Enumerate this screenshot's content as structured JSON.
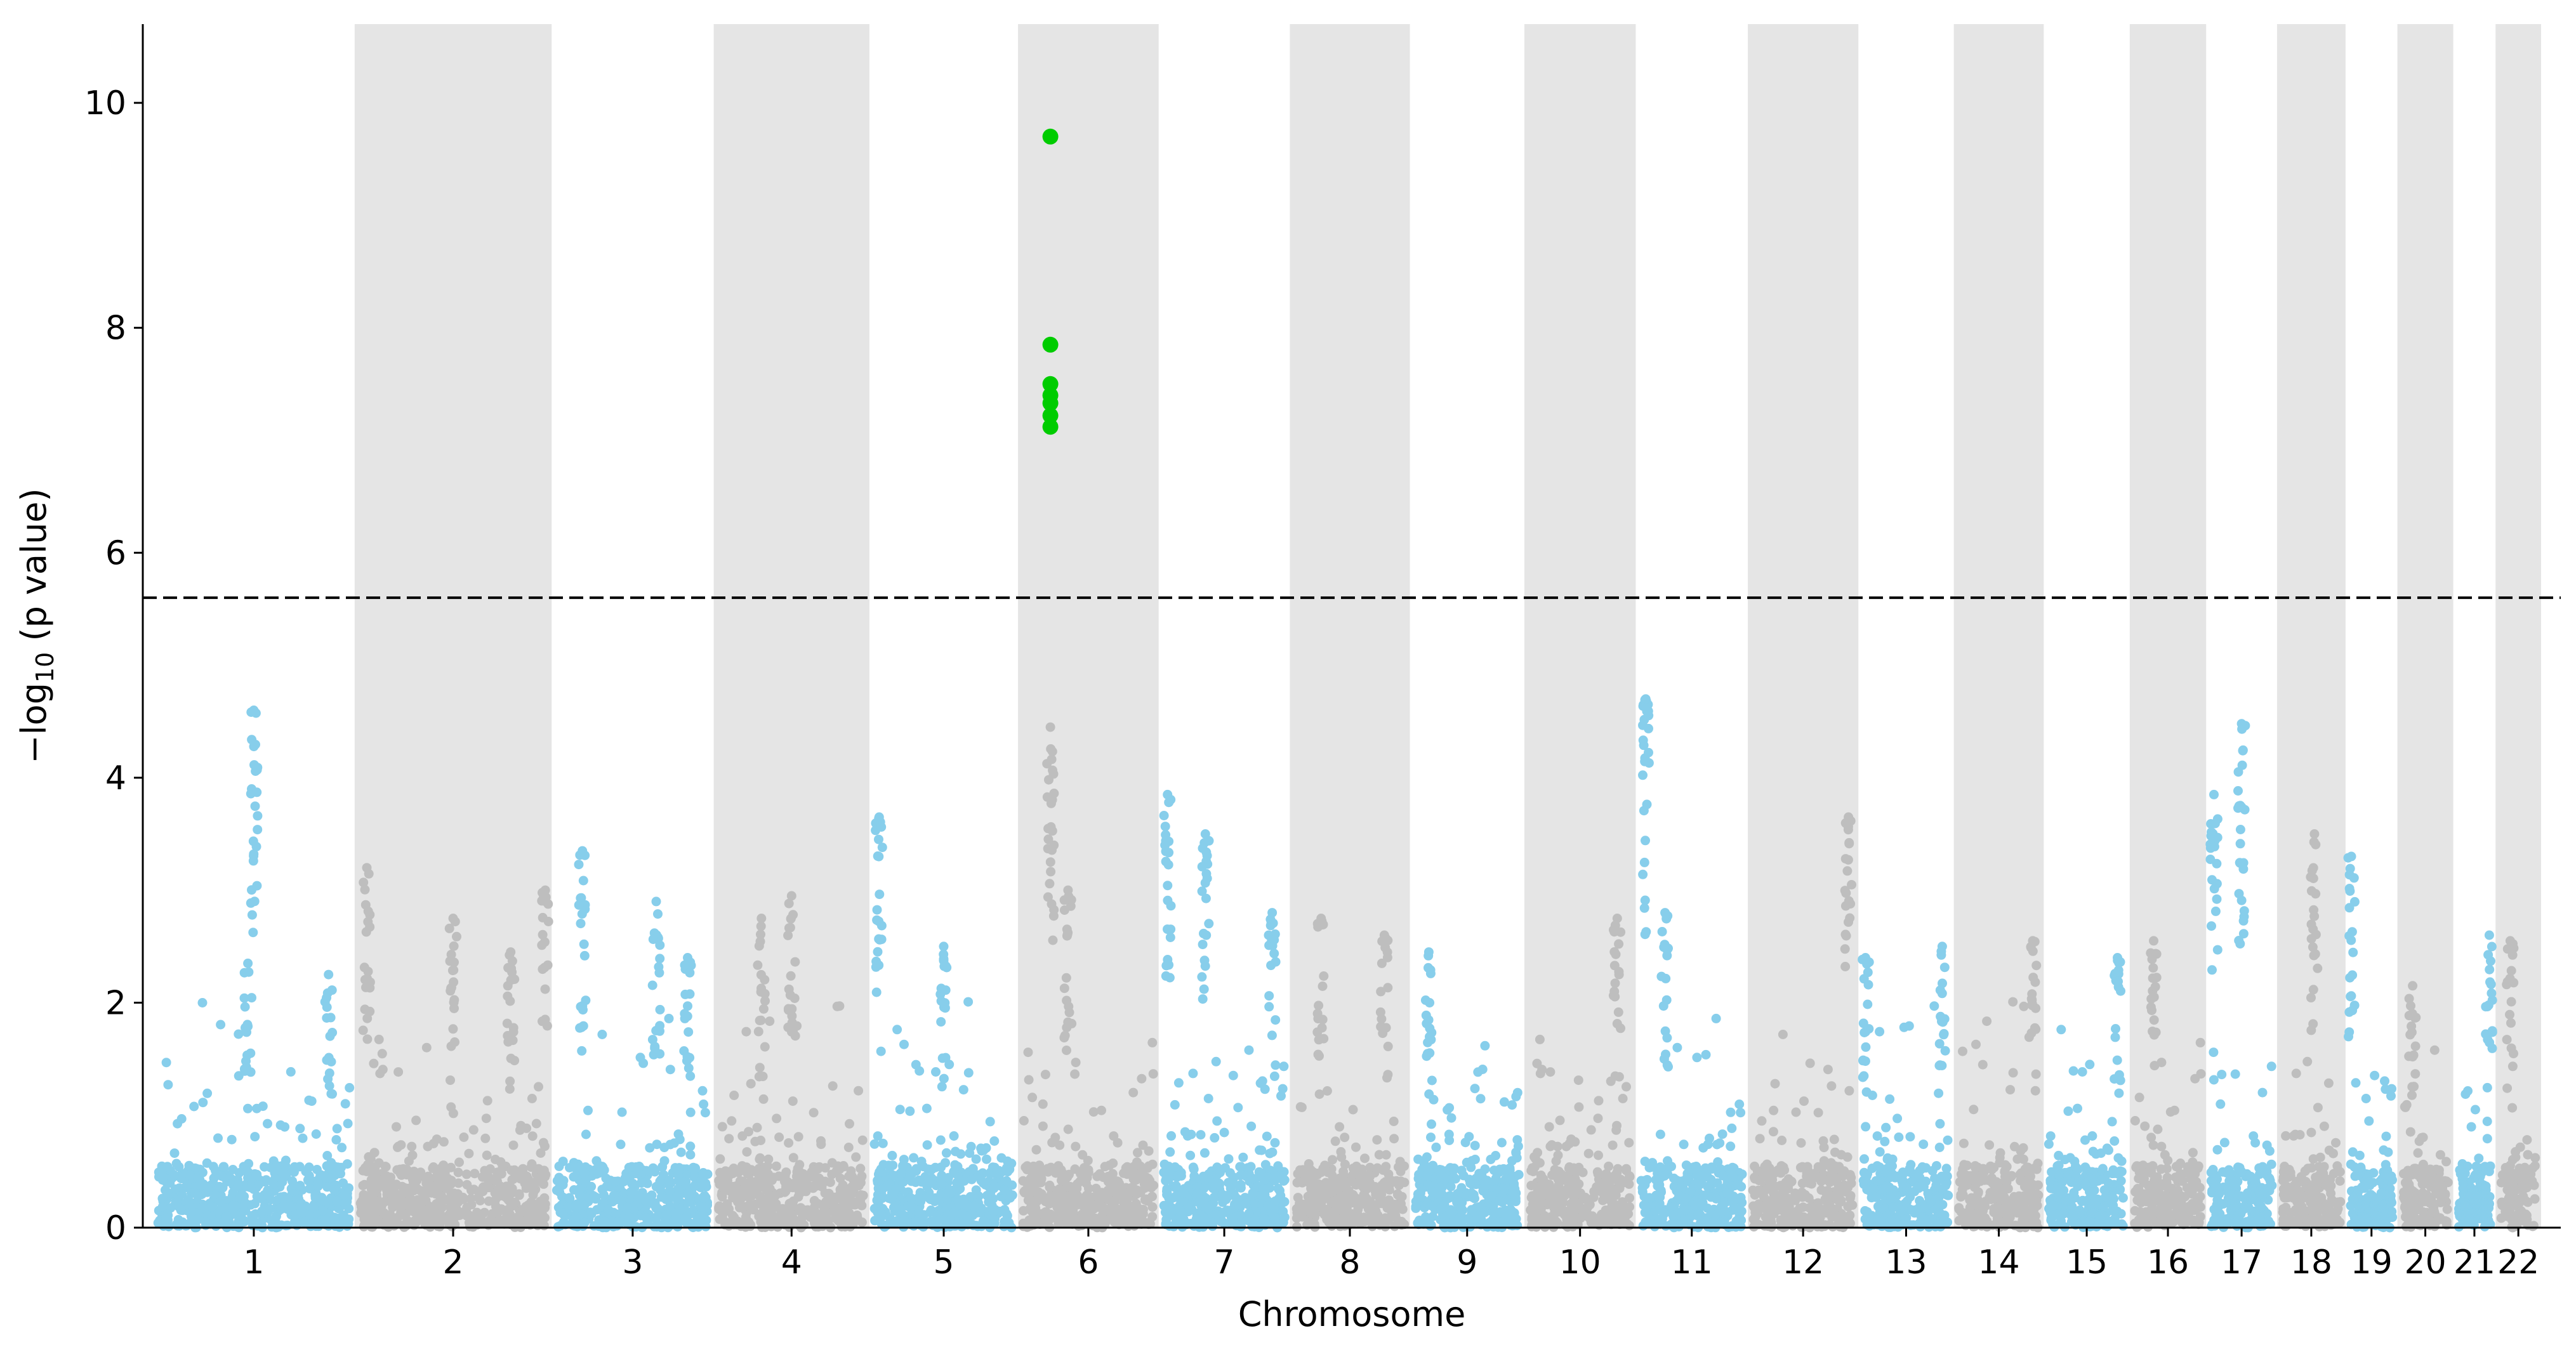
{
  "chart_data": {
    "type": "scatter",
    "subtype": "manhattan",
    "title": "",
    "xlabel": "Chromosome",
    "ylabel_prefix": "−log",
    "ylabel_subscript": "10",
    "ylabel_suffix": " (p value)",
    "ylim": [
      0,
      10.7
    ],
    "yticks": [
      0,
      2,
      4,
      6,
      8,
      10
    ],
    "threshold": {
      "value": 5.6,
      "style": "dashed",
      "color": "#000000"
    },
    "colors": {
      "odd_chromosome_points": "#87ceeb",
      "even_chromosome_points": "#bebebe",
      "significant_points": "#00cc00",
      "even_band_background": "#e5e5e5"
    },
    "chromosomes": [
      {
        "label": "1",
        "span": 248
      },
      {
        "label": "2",
        "span": 242
      },
      {
        "label": "3",
        "span": 198
      },
      {
        "label": "4",
        "span": 190
      },
      {
        "label": "5",
        "span": 181
      },
      {
        "label": "6",
        "span": 171
      },
      {
        "label": "7",
        "span": 159
      },
      {
        "label": "8",
        "span": 145
      },
      {
        "label": "9",
        "span": 138
      },
      {
        "label": "10",
        "span": 134
      },
      {
        "label": "11",
        "span": 135
      },
      {
        "label": "12",
        "span": 133
      },
      {
        "label": "13",
        "span": 114
      },
      {
        "label": "14",
        "span": 107
      },
      {
        "label": "15",
        "span": 102
      },
      {
        "label": "16",
        "span": 90
      },
      {
        "label": "17",
        "span": 83
      },
      {
        "label": "18",
        "span": 80
      },
      {
        "label": "19",
        "span": 59
      },
      {
        "label": "20",
        "span": 64
      },
      {
        "label": "21",
        "span": 47
      },
      {
        "label": "22",
        "span": 51
      }
    ],
    "peaks": [
      {
        "chr": "1",
        "pos": 0.47,
        "value": 2.35
      },
      {
        "chr": "1",
        "pos": 0.5,
        "value": 4.6
      },
      {
        "chr": "1",
        "pos": 0.88,
        "value": 2.25
      },
      {
        "chr": "2",
        "pos": 0.05,
        "value": 3.2
      },
      {
        "chr": "2",
        "pos": 0.5,
        "value": 2.75
      },
      {
        "chr": "2",
        "pos": 0.8,
        "value": 2.45
      },
      {
        "chr": "2",
        "pos": 0.98,
        "value": 3.0
      },
      {
        "chr": "3",
        "pos": 0.18,
        "value": 3.35
      },
      {
        "chr": "3",
        "pos": 0.65,
        "value": 2.9
      },
      {
        "chr": "3",
        "pos": 0.85,
        "value": 2.4
      },
      {
        "chr": "4",
        "pos": 0.3,
        "value": 2.75
      },
      {
        "chr": "4",
        "pos": 0.5,
        "value": 2.95
      },
      {
        "chr": "5",
        "pos": 0.05,
        "value": 3.65
      },
      {
        "chr": "5",
        "pos": 0.5,
        "value": 2.5
      },
      {
        "chr": "6",
        "pos": 0.22,
        "value": 4.45
      },
      {
        "chr": "6",
        "pos": 0.35,
        "value": 3.0
      },
      {
        "chr": "7",
        "pos": 0.05,
        "value": 3.85
      },
      {
        "chr": "7",
        "pos": 0.35,
        "value": 3.5
      },
      {
        "chr": "7",
        "pos": 0.88,
        "value": 2.8
      },
      {
        "chr": "8",
        "pos": 0.25,
        "value": 2.75
      },
      {
        "chr": "8",
        "pos": 0.8,
        "value": 2.6
      },
      {
        "chr": "9",
        "pos": 0.15,
        "value": 2.45
      },
      {
        "chr": "10",
        "pos": 0.85,
        "value": 2.75
      },
      {
        "chr": "11",
        "pos": 0.07,
        "value": 4.7
      },
      {
        "chr": "11",
        "pos": 0.25,
        "value": 2.8
      },
      {
        "chr": "12",
        "pos": 0.93,
        "value": 3.65
      },
      {
        "chr": "13",
        "pos": 0.05,
        "value": 2.4
      },
      {
        "chr": "13",
        "pos": 0.9,
        "value": 2.5
      },
      {
        "chr": "14",
        "pos": 0.9,
        "value": 2.55
      },
      {
        "chr": "15",
        "pos": 0.88,
        "value": 2.4
      },
      {
        "chr": "16",
        "pos": 0.3,
        "value": 2.55
      },
      {
        "chr": "17",
        "pos": 0.08,
        "value": 3.85
      },
      {
        "chr": "17",
        "pos": 0.5,
        "value": 4.48
      },
      {
        "chr": "18",
        "pos": 0.55,
        "value": 3.5
      },
      {
        "chr": "19",
        "pos": 0.07,
        "value": 3.3
      },
      {
        "chr": "20",
        "pos": 0.25,
        "value": 2.15
      },
      {
        "chr": "21",
        "pos": 0.9,
        "value": 2.6
      },
      {
        "chr": "22",
        "pos": 0.3,
        "value": 2.55
      }
    ],
    "significant_hits": [
      {
        "chr": "6",
        "pos": 0.22,
        "value": 9.7
      },
      {
        "chr": "6",
        "pos": 0.22,
        "value": 7.85
      },
      {
        "chr": "6",
        "pos": 0.22,
        "value": 7.5
      },
      {
        "chr": "6",
        "pos": 0.22,
        "value": 7.4
      },
      {
        "chr": "6",
        "pos": 0.22,
        "value": 7.33
      },
      {
        "chr": "6",
        "pos": 0.22,
        "value": 7.22
      },
      {
        "chr": "6",
        "pos": 0.22,
        "value": 7.12
      }
    ]
  }
}
